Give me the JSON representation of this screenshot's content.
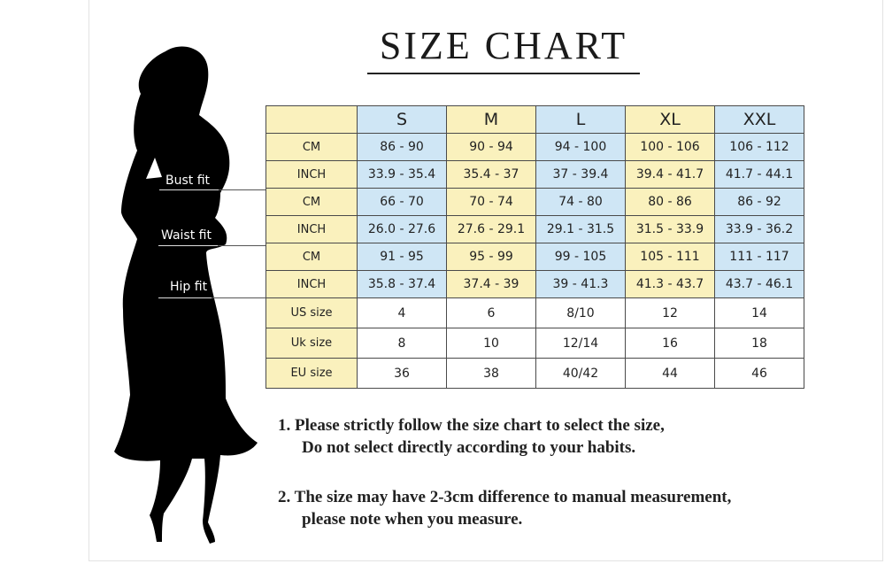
{
  "title": "SIZE CHART",
  "fit_labels": {
    "bust": "Bust fit",
    "waist": "Waist fit",
    "hip": "Hip fit"
  },
  "colors": {
    "yellow": "#faf1bd",
    "blue": "#cfe6f5"
  },
  "table": {
    "sizes": [
      "S",
      "M",
      "L",
      "XL",
      "XXL"
    ],
    "rows": [
      {
        "label": "CM",
        "values": [
          "86 - 90",
          "90 - 94",
          "94 - 100",
          "100 - 106",
          "106 - 112"
        ]
      },
      {
        "label": "INCH",
        "values": [
          "33.9 - 35.4",
          "35.4 - 37",
          "37 - 39.4",
          "39.4 - 41.7",
          "41.7 - 44.1"
        ]
      },
      {
        "label": "CM",
        "values": [
          "66 - 70",
          "70 - 74",
          "74 - 80",
          "80 - 86",
          "86 - 92"
        ]
      },
      {
        "label": "INCH",
        "values": [
          "26.0 - 27.6",
          "27.6 - 29.1",
          "29.1 - 31.5",
          "31.5 - 33.9",
          "33.9 - 36.2"
        ]
      },
      {
        "label": "CM",
        "values": [
          "91 - 95",
          "95 - 99",
          "99 - 105",
          "105 - 111",
          "111 - 117"
        ]
      },
      {
        "label": "INCH",
        "values": [
          "35.8 - 37.4",
          "37.4 - 39",
          "39 - 41.3",
          "41.3 - 43.7",
          "43.7 - 46.1"
        ]
      },
      {
        "label": "US size",
        "values": [
          "4",
          "6",
          "8/10",
          "12",
          "14"
        ]
      },
      {
        "label": "Uk size",
        "values": [
          "8",
          "10",
          "12/14",
          "16",
          "18"
        ]
      },
      {
        "label": "EU size",
        "values": [
          "36",
          "38",
          "40/42",
          "44",
          "46"
        ]
      }
    ]
  },
  "notes": [
    {
      "line1": "1.  Please strictly follow the size chart to select the size,",
      "line2": "Do not select directly according to your habits."
    },
    {
      "line1": "2.  The size may have 2-3cm difference  to manual measurement,",
      "line2": "please note when you measure."
    }
  ]
}
